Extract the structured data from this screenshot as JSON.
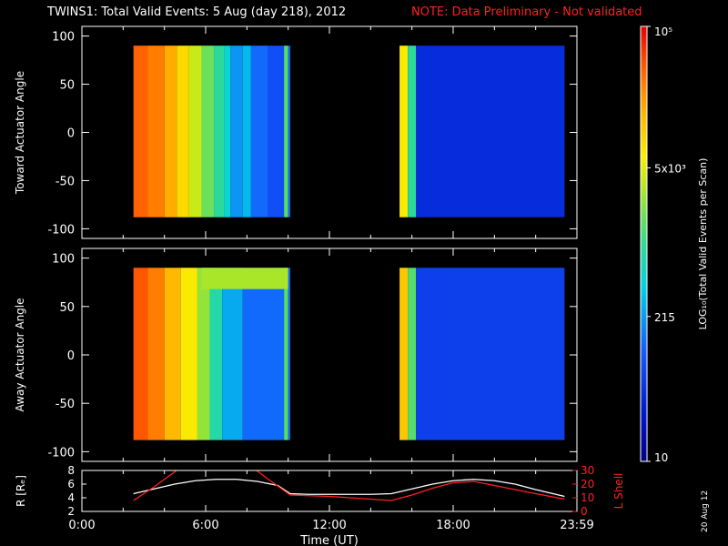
{
  "title": {
    "main": "TWINS1: Total Valid Events:  5 Aug (day 218), 2012",
    "note": "NOTE: Data Preliminary - Not validated",
    "note_color": "#ff2020"
  },
  "side_date": "20 Aug 12",
  "colorbar": {
    "scale": "log",
    "range": [
      10,
      100000
    ],
    "ticks": [
      {
        "value": 100000,
        "label": "10⁵"
      },
      {
        "value": 5000,
        "label": "5x10³"
      },
      {
        "value": 215,
        "label": "215"
      },
      {
        "value": 10,
        "label": "10"
      }
    ],
    "label": "LOG₁₀(Total Valid Events per Scan)",
    "colormap": "rainbow (blue → cyan → green → yellow → orange → red)"
  },
  "chart_data": [
    {
      "type": "heatmap",
      "name": "toward",
      "ylabel": "Toward Actuator Angle",
      "xlim": [
        0,
        24
      ],
      "ylim": [
        -110,
        110
      ],
      "yticks": [
        100,
        50,
        0,
        -50,
        -100
      ],
      "data_angle_range": [
        -88,
        90
      ],
      "columns": [
        {
          "start": 2.5,
          "end": 3.2,
          "value": 40000
        },
        {
          "start": 3.2,
          "end": 4.0,
          "value": 30000
        },
        {
          "start": 4.0,
          "end": 4.6,
          "value": 18000
        },
        {
          "start": 4.6,
          "end": 5.2,
          "value": 9000
        },
        {
          "start": 5.2,
          "end": 5.8,
          "value": 4000
        },
        {
          "start": 5.8,
          "end": 6.4,
          "value": 1800
        },
        {
          "start": 6.4,
          "end": 6.9,
          "value": 900
        },
        {
          "start": 6.9,
          "end": 7.2,
          "value": 500
        },
        {
          "start": 7.2,
          "end": 7.8,
          "value": 200
        },
        {
          "start": 7.8,
          "end": 8.2,
          "value": 300
        },
        {
          "start": 8.2,
          "end": 9.0,
          "value": 120
        },
        {
          "start": 9.0,
          "end": 9.8,
          "value": 80
        },
        {
          "start": 9.8,
          "end": 10.0,
          "value": 1500
        },
        {
          "start": 10.0,
          "end": 10.1,
          "value": 120
        },
        {
          "start": 15.4,
          "end": 15.8,
          "value": 7000
        },
        {
          "start": 15.8,
          "end": 16.2,
          "value": 900
        },
        {
          "start": 16.2,
          "end": 23.4,
          "value": 40
        }
      ]
    },
    {
      "type": "heatmap",
      "name": "away",
      "ylabel": "Away Actuator Angle",
      "xlim": [
        0,
        24
      ],
      "ylim": [
        -110,
        110
      ],
      "yticks": [
        100,
        50,
        0,
        -50,
        -100
      ],
      "data_angle_range": [
        -88,
        90
      ],
      "columns": [
        {
          "start": 2.5,
          "end": 3.2,
          "value": 45000
        },
        {
          "start": 3.2,
          "end": 4.0,
          "value": 30000
        },
        {
          "start": 4.0,
          "end": 4.8,
          "value": 15000
        },
        {
          "start": 4.8,
          "end": 5.6,
          "value": 7000
        },
        {
          "start": 5.6,
          "end": 6.2,
          "value": 2500
        },
        {
          "start": 6.2,
          "end": 6.8,
          "value": 800
        },
        {
          "start": 6.8,
          "end": 7.8,
          "value": 250
        },
        {
          "start": 7.8,
          "end": 9.8,
          "value": 120
        },
        {
          "start": 9.8,
          "end": 10.0,
          "value": 1500
        },
        {
          "start": 10.0,
          "end": 10.1,
          "value": 120
        },
        {
          "start": 15.4,
          "end": 15.8,
          "value": 12000
        },
        {
          "start": 15.8,
          "end": 16.2,
          "value": 1500
        },
        {
          "start": 16.2,
          "end": 23.4,
          "value": 60
        }
      ],
      "high_band": {
        "start": 5.8,
        "end": 10.0,
        "angle_min": 68,
        "angle_max": 90,
        "value": 3000
      }
    },
    {
      "type": "line",
      "name": "ephemeris",
      "xlabel": "Time (UT)",
      "ylabel_left": "R [Rₑ]",
      "ylabel_right": "L Shell",
      "xlim": [
        0,
        24
      ],
      "xticks": [
        0,
        6,
        12,
        18,
        24
      ],
      "xticklabels": [
        "0:00",
        "6:00",
        "12:00",
        "18:00",
        "23:59"
      ],
      "ylim_left": [
        2,
        8
      ],
      "yticks_left": [
        2,
        4,
        6,
        8
      ],
      "ylim_right": [
        0,
        30
      ],
      "yticks_right": [
        0,
        10,
        20,
        30
      ],
      "series": [
        {
          "axis": "left",
          "color": "#ffffff",
          "x": [
            2.5,
            3.5,
            4.5,
            5.5,
            6.5,
            7.5,
            8.5,
            9.5,
            10.1,
            11,
            12,
            13,
            14,
            15,
            16,
            17,
            18,
            19,
            20,
            21,
            22,
            23.4
          ],
          "y": [
            4.6,
            5.3,
            6.0,
            6.5,
            6.7,
            6.7,
            6.4,
            5.8,
            4.6,
            4.5,
            4.5,
            4.5,
            4.5,
            4.6,
            5.3,
            6.0,
            6.5,
            6.7,
            6.5,
            6.0,
            5.2,
            4.2
          ]
        },
        {
          "axis": "right",
          "color": "#ff2020",
          "x": [
            2.5,
            3.5,
            4.5,
            4.8,
            8.2,
            9.0,
            10.1,
            12,
            13,
            14,
            15,
            16,
            17,
            18,
            19,
            20,
            21,
            22,
            23.4
          ],
          "y": [
            8,
            18,
            29,
            33,
            33,
            24,
            12,
            11,
            10,
            9,
            8,
            12,
            17,
            21,
            22,
            19,
            16,
            13,
            9
          ]
        }
      ]
    }
  ]
}
